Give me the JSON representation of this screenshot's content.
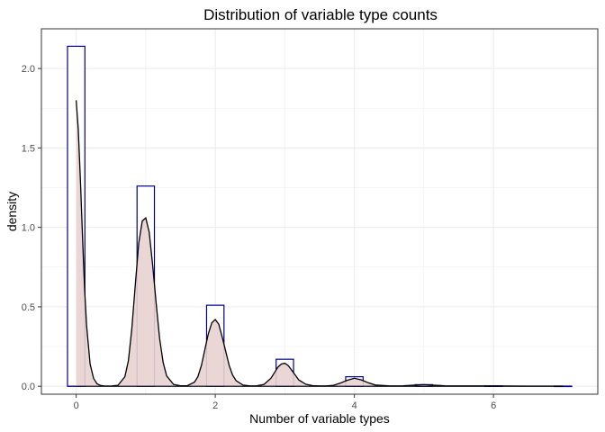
{
  "chart_data": {
    "type": "bar",
    "title": "Distribution of variable type counts",
    "xlabel": "Number of variable types",
    "ylabel": "density",
    "xlim": [
      -0.5,
      7.5
    ],
    "ylim": [
      -0.05,
      2.25
    ],
    "x_ticks": [
      0,
      2,
      4,
      6
    ],
    "y_ticks": [
      0.0,
      0.5,
      1.0,
      1.5,
      2.0
    ],
    "x_tick_labels": [
      "0",
      "2",
      "4",
      "6"
    ],
    "y_tick_labels": [
      "0.0",
      "0.5",
      "1.0",
      "1.5",
      "2.0"
    ],
    "grid": true,
    "histogram": {
      "bin_width": 0.25,
      "bins": [
        {
          "center": 0,
          "value": 2.14
        },
        {
          "center": 1,
          "value": 1.26
        },
        {
          "center": 2,
          "value": 0.51
        },
        {
          "center": 3,
          "value": 0.17
        },
        {
          "center": 4,
          "value": 0.06
        },
        {
          "center": 5,
          "value": 0.01
        },
        {
          "center": 6,
          "value": 0.002
        },
        {
          "center": 7,
          "value": 0.001
        }
      ],
      "outline_color": "#00008B",
      "fill_color": "#FFFFFF"
    },
    "density": {
      "x": [
        0,
        0.03,
        0.06,
        0.09,
        0.12,
        0.15,
        0.2,
        0.25,
        0.3,
        0.35,
        0.4,
        0.5,
        0.6,
        0.7,
        0.75,
        0.8,
        0.85,
        0.9,
        0.95,
        1.0,
        1.05,
        1.1,
        1.15,
        1.2,
        1.25,
        1.3,
        1.4,
        1.5,
        1.6,
        1.7,
        1.75,
        1.8,
        1.85,
        1.9,
        1.95,
        2.0,
        2.05,
        2.1,
        2.15,
        2.2,
        2.25,
        2.3,
        2.4,
        2.5,
        2.6,
        2.7,
        2.8,
        2.85,
        2.9,
        2.95,
        3.0,
        3.05,
        3.1,
        3.15,
        3.2,
        3.3,
        3.4,
        3.5,
        3.6,
        3.7,
        3.8,
        3.9,
        4.0,
        4.1,
        4.2,
        4.3,
        4.5,
        4.7,
        4.9,
        5.0,
        5.1,
        5.3,
        5.5,
        6.0,
        6.5,
        7.0
      ],
      "y": [
        1.8,
        1.62,
        1.3,
        0.95,
        0.62,
        0.38,
        0.14,
        0.05,
        0.015,
        0.005,
        0.002,
        0.001,
        0.006,
        0.06,
        0.16,
        0.36,
        0.64,
        0.9,
        1.04,
        1.06,
        0.97,
        0.76,
        0.52,
        0.3,
        0.15,
        0.065,
        0.012,
        0.003,
        0.004,
        0.026,
        0.06,
        0.13,
        0.23,
        0.33,
        0.4,
        0.42,
        0.39,
        0.31,
        0.22,
        0.13,
        0.07,
        0.035,
        0.007,
        0.002,
        0.003,
        0.012,
        0.05,
        0.085,
        0.12,
        0.14,
        0.145,
        0.13,
        0.1,
        0.07,
        0.04,
        0.013,
        0.004,
        0.002,
        0.002,
        0.006,
        0.02,
        0.038,
        0.05,
        0.04,
        0.022,
        0.008,
        0.002,
        0.003,
        0.008,
        0.01,
        0.008,
        0.003,
        0.002,
        0.002,
        0.001,
        0.001
      ],
      "line_color": "#000000",
      "fill_color": "#E8D3D0"
    }
  }
}
